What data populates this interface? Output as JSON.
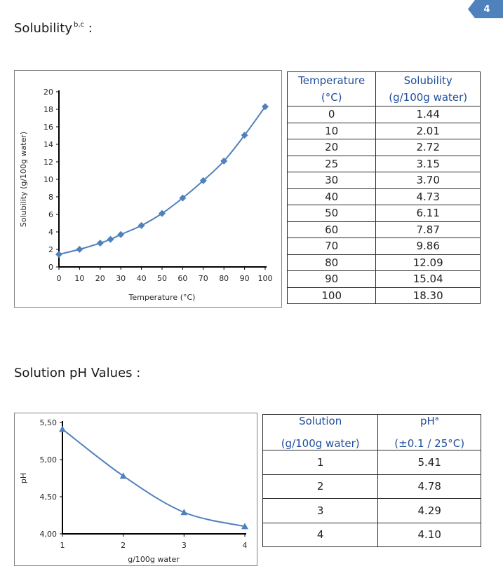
{
  "page_number": "4",
  "solubility_section": {
    "title": "Solubility",
    "superscript": "b,c",
    "colon": ":"
  },
  "ph_section": {
    "title": "Solution pH Values :"
  },
  "solubility_table": {
    "headers": [
      [
        "Temperature",
        "(°C)"
      ],
      [
        "Solubility",
        "(g/100g water)"
      ]
    ],
    "rows": [
      [
        "0",
        "1.44"
      ],
      [
        "10",
        "2.01"
      ],
      [
        "20",
        "2.72"
      ],
      [
        "25",
        "3.15"
      ],
      [
        "30",
        "3.70"
      ],
      [
        "40",
        "4.73"
      ],
      [
        "50",
        "6.11"
      ],
      [
        "60",
        "7.87"
      ],
      [
        "70",
        "9.86"
      ],
      [
        "80",
        "12.09"
      ],
      [
        "90",
        "15.04"
      ],
      [
        "100",
        "18.30"
      ]
    ]
  },
  "ph_table": {
    "headers": [
      [
        "Solution",
        "(g/100g water)"
      ],
      [
        "pH",
        "a",
        "(±0.1 / 25°C)"
      ]
    ],
    "rows": [
      [
        "1",
        "5.41"
      ],
      [
        "2",
        "4.78"
      ],
      [
        "3",
        "4.29"
      ],
      [
        "4",
        "4.10"
      ]
    ]
  },
  "chart_data": [
    {
      "type": "scatter",
      "title": "",
      "xlabel": "Temperature (°C)",
      "ylabel": "Solubility (g/100g water)",
      "xlim": [
        0,
        100
      ],
      "ylim": [
        0,
        20
      ],
      "x_ticks": [
        "0",
        "10",
        "20",
        "30",
        "40",
        "50",
        "60",
        "70",
        "80",
        "90",
        "100"
      ],
      "y_ticks": [
        "0",
        "2",
        "4",
        "6",
        "8",
        "10",
        "12",
        "14",
        "16",
        "18",
        "20"
      ],
      "marker": "diamond",
      "trendline": true,
      "grid": false,
      "color": "#4f81bd",
      "series": [
        {
          "x": [
            0,
            10,
            20,
            25,
            30,
            40,
            50,
            60,
            70,
            80,
            90,
            100
          ],
          "y": [
            1.44,
            2.01,
            2.72,
            3.15,
            3.7,
            4.73,
            6.11,
            7.87,
            9.86,
            12.09,
            15.04,
            18.3
          ]
        }
      ]
    },
    {
      "type": "scatter",
      "title": "",
      "xlabel": "g/100g water",
      "ylabel": "pH",
      "xlim": [
        1,
        4
      ],
      "ylim": [
        4.0,
        5.5
      ],
      "x_ticks": [
        "1",
        "2",
        "3",
        "4"
      ],
      "y_ticks": [
        "4,00",
        "4,50",
        "5,00",
        "5,50"
      ],
      "y_tick_values": [
        4.0,
        4.5,
        5.0,
        5.5
      ],
      "marker": "triangle",
      "trendline": true,
      "grid": false,
      "color": "#4f81bd",
      "series": [
        {
          "x": [
            1,
            2,
            3,
            4
          ],
          "y": [
            5.41,
            4.78,
            4.29,
            4.1
          ]
        }
      ]
    }
  ]
}
